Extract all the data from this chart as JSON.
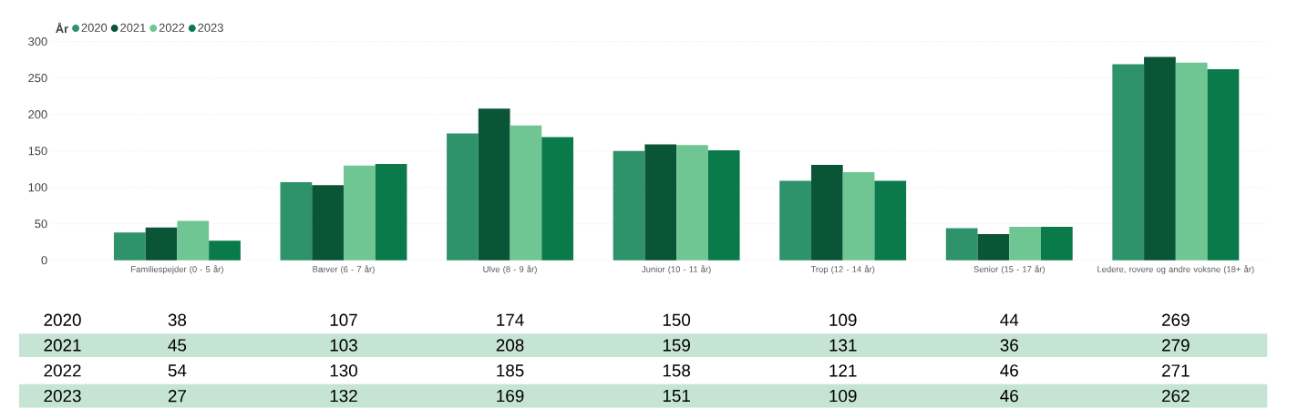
{
  "chart_data": {
    "type": "bar",
    "legend_title": "År",
    "categories": [
      "Familiespejder (0 - 5 år)",
      "Bæver (6 - 7 år)",
      "Ulve (8 - 9 år)",
      "Junior (10 - 11 år)",
      "Trop (12 - 14 år)",
      "Senior (15 - 17 år)",
      "Ledere, rovere og andre voksne (18+ år)"
    ],
    "series": [
      {
        "name": "2020",
        "color": "#2e936b",
        "values": [
          38,
          107,
          174,
          150,
          109,
          44,
          269
        ]
      },
      {
        "name": "2021",
        "color": "#0b5537",
        "values": [
          45,
          103,
          208,
          159,
          131,
          36,
          279
        ]
      },
      {
        "name": "2022",
        "color": "#6fc693",
        "values": [
          54,
          130,
          185,
          158,
          121,
          46,
          271
        ]
      },
      {
        "name": "2023",
        "color": "#0a7a4a",
        "values": [
          27,
          132,
          169,
          151,
          109,
          46,
          262
        ]
      }
    ],
    "ylim": [
      0,
      300
    ],
    "yticks": [
      0,
      50,
      100,
      150,
      200,
      250,
      300
    ],
    "grid": "y",
    "legend": "top left",
    "data_labels": true
  }
}
